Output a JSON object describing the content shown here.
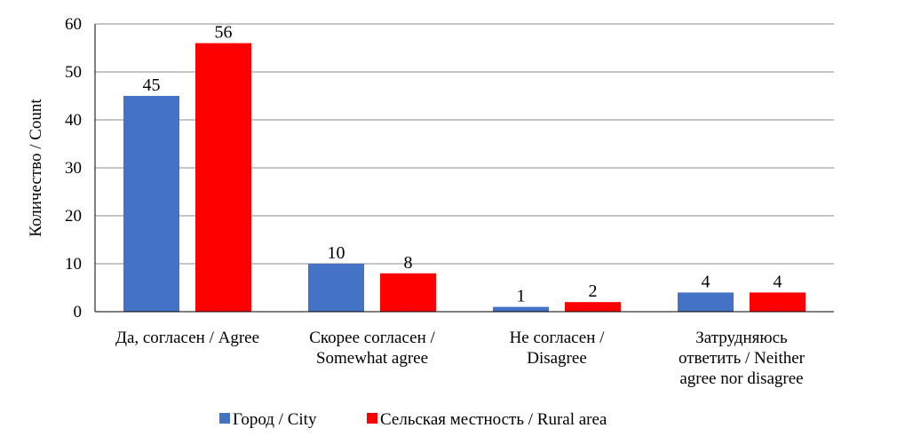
{
  "chart_data": {
    "type": "bar",
    "title": "",
    "xlabel": "",
    "ylabel": "Количество / Count",
    "ylim": [
      0,
      60
    ],
    "yticks": [
      0,
      10,
      20,
      30,
      40,
      50,
      60
    ],
    "grid": true,
    "legend_position": "bottom",
    "categories": [
      [
        "Да, согласен / Agree"
      ],
      [
        "Скорее согласен /",
        "Somewhat agree"
      ],
      [
        "Не согласен /",
        "Disagree"
      ],
      [
        "Затрудняюсь",
        "ответить / Neither",
        "agree nor disagree"
      ]
    ],
    "series": [
      {
        "name": "Город / City",
        "color": "#4472C4",
        "values": [
          45,
          10,
          1,
          4
        ]
      },
      {
        "name": "Сельская местность / Rural area",
        "color": "#FF0000",
        "values": [
          56,
          8,
          2,
          4
        ]
      }
    ]
  }
}
